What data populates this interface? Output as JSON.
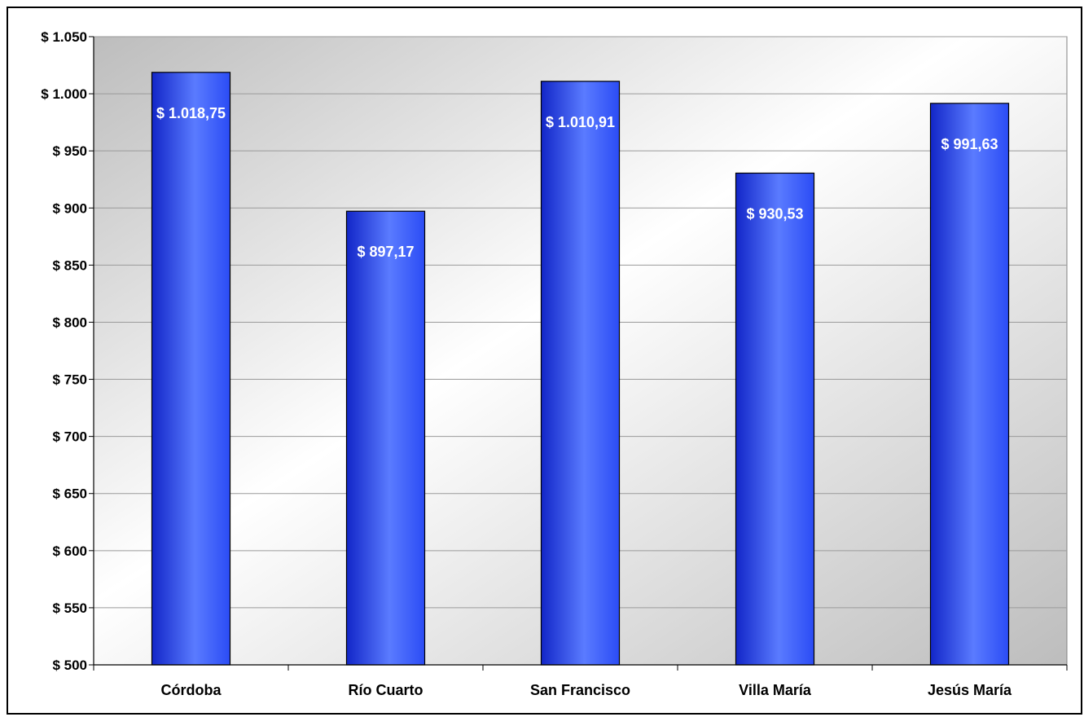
{
  "chart_data": {
    "type": "bar",
    "title": "",
    "xlabel": "",
    "ylabel": "",
    "categories": [
      "Córdoba",
      "Río Cuarto",
      "San Francisco",
      "Villa María",
      "Jesús María"
    ],
    "values": [
      1018.75,
      897.17,
      1010.91,
      930.53,
      991.63
    ],
    "data_labels": [
      "$ 1.018,75",
      "$ 897,17",
      "$ 1.010,91",
      "$ 930,53",
      "$ 991,63"
    ],
    "ylim": [
      500,
      1050
    ],
    "yticks": [
      500,
      550,
      600,
      650,
      700,
      750,
      800,
      850,
      900,
      950,
      1000,
      1050
    ],
    "ytick_labels": [
      "$ 500",
      "$ 550",
      "$ 600",
      "$ 650",
      "$ 700",
      "$ 750",
      "$ 800",
      "$ 850",
      "$ 900",
      "$ 950",
      "$ 1.000",
      "$ 1.050"
    ],
    "grid": true,
    "legend": "none",
    "colors": {
      "bar": "#2b4cf5",
      "bar_light": "#5a7bff",
      "bar_dark": "#1226c8",
      "plot_bg_dark": "#bdbdbd",
      "plot_bg_light": "#ffffff",
      "gridline": "#9a9a9a",
      "data_label": "#ffffff"
    }
  }
}
